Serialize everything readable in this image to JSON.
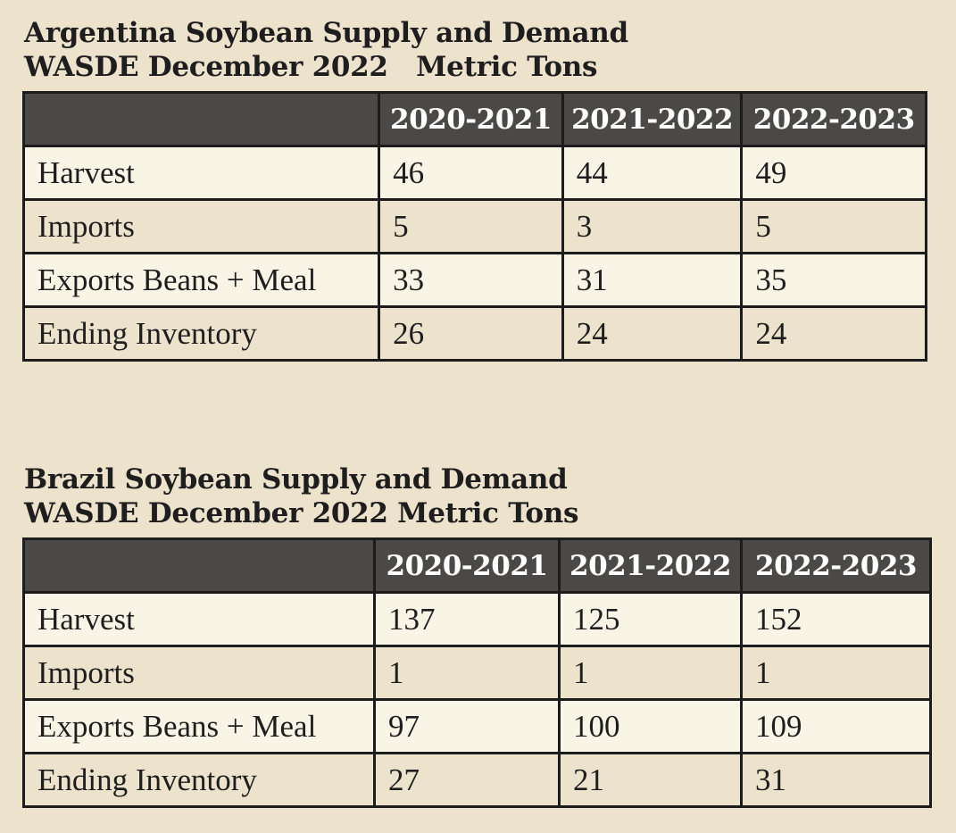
{
  "tables": [
    {
      "title_line1": "Argentina Soybean Supply and Demand",
      "title_line2": "WASDE December 2022   Metric Tons",
      "columns": [
        "",
        "2020-2021",
        "2021-2022",
        "2022-2023"
      ],
      "rows": [
        {
          "label": "Harvest",
          "values": [
            "46",
            "44",
            "49"
          ]
        },
        {
          "label": "Imports",
          "values": [
            "5",
            "3",
            "5"
          ]
        },
        {
          "label": "Exports Beans + Meal",
          "values": [
            "33",
            "31",
            "35"
          ]
        },
        {
          "label": "Ending Inventory",
          "values": [
            "26",
            "24",
            "24"
          ]
        }
      ]
    },
    {
      "title_line1": "Brazil Soybean Supply and Demand",
      "title_line2": "WASDE December 2022 Metric Tons",
      "columns": [
        "",
        "2020-2021",
        "2021-2022",
        "2022-2023"
      ],
      "rows": [
        {
          "label": "Harvest",
          "values": [
            "137",
            "125",
            "152"
          ]
        },
        {
          "label": "Imports",
          "values": [
            "1",
            "1",
            "1"
          ]
        },
        {
          "label": "Exports Beans + Meal",
          "values": [
            "97",
            "100",
            "109"
          ]
        },
        {
          "label": "Ending Inventory",
          "values": [
            "27",
            "21",
            "31"
          ]
        }
      ]
    }
  ],
  "colors": {
    "background": "#ede3cd",
    "header_fill": "#4a4948",
    "light_row": "#f8f5e6",
    "border": "#1c1c1c"
  }
}
